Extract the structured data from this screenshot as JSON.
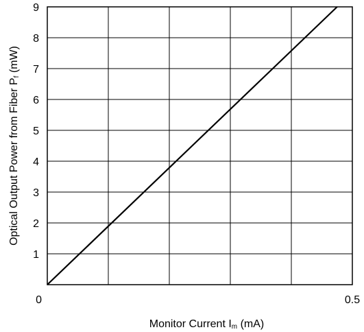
{
  "chart_data": {
    "type": "line",
    "xlabel": {
      "main": "Monitor Current  I",
      "sub": "m",
      "unit": " (mA)"
    },
    "ylabel": {
      "main": "Optical Output Power from Fiber  P",
      "sub": "f",
      "unit": " (mW)"
    },
    "xlim": [
      0,
      0.5
    ],
    "ylim": [
      0,
      9
    ],
    "x_grid": [
      0,
      0.1,
      0.2,
      0.3,
      0.4,
      0.5
    ],
    "y_grid": [
      0,
      1,
      2,
      3,
      4,
      5,
      6,
      7,
      8,
      9
    ],
    "x_tick_labels": [
      {
        "value": 0,
        "label": "0"
      },
      {
        "value": 0.5,
        "label": "0.5"
      }
    ],
    "y_tick_labels": [
      {
        "value": 0,
        "label": "0"
      },
      {
        "value": 1,
        "label": "1"
      },
      {
        "value": 2,
        "label": "2"
      },
      {
        "value": 3,
        "label": "3"
      },
      {
        "value": 4,
        "label": "4"
      },
      {
        "value": 5,
        "label": "5"
      },
      {
        "value": 6,
        "label": "6"
      },
      {
        "value": 7,
        "label": "7"
      },
      {
        "value": 8,
        "label": "8"
      },
      {
        "value": 9,
        "label": "9"
      }
    ],
    "grid": true,
    "series": [
      {
        "x": [
          0,
          0.475
        ],
        "y": [
          0,
          9
        ],
        "color": "#000000"
      }
    ]
  }
}
